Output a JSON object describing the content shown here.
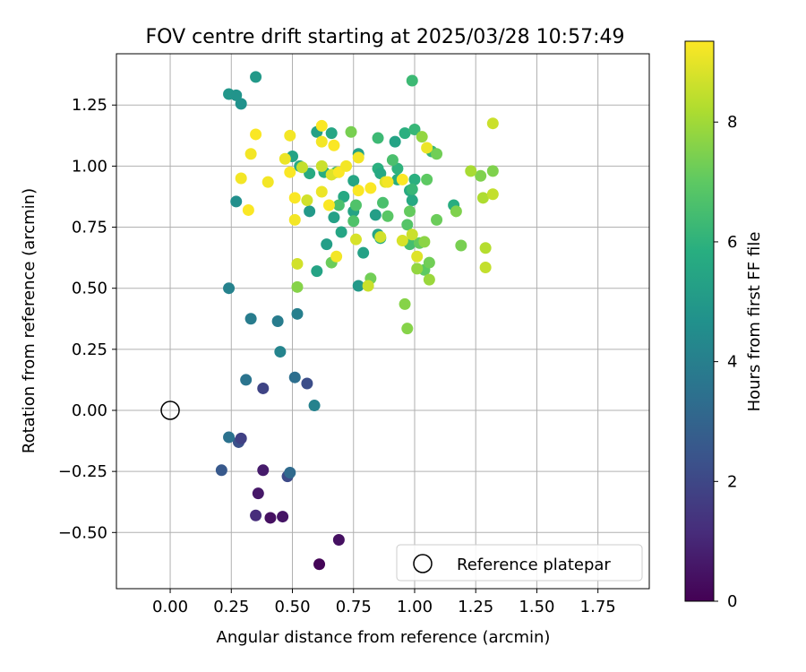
{
  "chart_data": {
    "type": "scatter",
    "title": "FOV centre drift starting at 2025/03/28 10:57:49",
    "xlabel": "Angular distance from reference (arcmin)",
    "ylabel": "Rotation from reference (arcmin)",
    "xlim": [
      -0.22,
      1.96
    ],
    "ylim": [
      -0.73,
      1.46
    ],
    "xticks": [
      "0.00",
      "0.25",
      "0.50",
      "0.75",
      "1.00",
      "1.25",
      "1.50",
      "1.75"
    ],
    "yticks": [
      "−0.50",
      "−0.25",
      "0.00",
      "0.25",
      "0.50",
      "0.75",
      "1.00",
      "1.25"
    ],
    "grid": true,
    "legend_position": "lower-right",
    "colormap": "viridis",
    "colorbar": {
      "label": "Hours from first FF file",
      "min": 0,
      "max": 9.35,
      "ticks": [
        "0",
        "2",
        "4",
        "6",
        "8"
      ]
    },
    "reference": {
      "label": "Reference platepar",
      "x": 0.0,
      "y": 0.0
    },
    "points": [
      {
        "x": 0.61,
        "y": -0.63,
        "t": 0.1
      },
      {
        "x": 0.69,
        "y": -0.53,
        "t": 0.4
      },
      {
        "x": 0.41,
        "y": -0.44,
        "t": 0.4
      },
      {
        "x": 0.46,
        "y": -0.435,
        "t": 0.5
      },
      {
        "x": 0.35,
        "y": -0.43,
        "t": 1.2
      },
      {
        "x": 0.36,
        "y": -0.34,
        "t": 0.6
      },
      {
        "x": 0.38,
        "y": -0.245,
        "t": 0.7
      },
      {
        "x": 0.21,
        "y": -0.245,
        "t": 2.6
      },
      {
        "x": 0.48,
        "y": -0.27,
        "t": 2.1
      },
      {
        "x": 0.49,
        "y": -0.255,
        "t": 3.2
      },
      {
        "x": 0.28,
        "y": -0.13,
        "t": 2.3
      },
      {
        "x": 0.29,
        "y": -0.115,
        "t": 1.8
      },
      {
        "x": 0.24,
        "y": -0.11,
        "t": 3.5
      },
      {
        "x": 0.59,
        "y": 0.02,
        "t": 4.1
      },
      {
        "x": 0.38,
        "y": 0.09,
        "t": 1.9
      },
      {
        "x": 0.56,
        "y": 0.11,
        "t": 2.2
      },
      {
        "x": 0.51,
        "y": 0.135,
        "t": 3.4
      },
      {
        "x": 0.31,
        "y": 0.125,
        "t": 3.6
      },
      {
        "x": 0.45,
        "y": 0.24,
        "t": 4.2
      },
      {
        "x": 0.33,
        "y": 0.375,
        "t": 3.9
      },
      {
        "x": 0.44,
        "y": 0.365,
        "t": 3.9
      },
      {
        "x": 0.52,
        "y": 0.395,
        "t": 4.0
      },
      {
        "x": 0.24,
        "y": 0.5,
        "t": 4.1
      },
      {
        "x": 0.27,
        "y": 0.855,
        "t": 4.6
      },
      {
        "x": 0.24,
        "y": 1.295,
        "t": 4.9
      },
      {
        "x": 0.29,
        "y": 1.255,
        "t": 4.7
      },
      {
        "x": 0.35,
        "y": 1.365,
        "t": 5.0
      },
      {
        "x": 0.6,
        "y": 0.57,
        "t": 5.4
      },
      {
        "x": 0.64,
        "y": 0.68,
        "t": 5.2
      },
      {
        "x": 0.57,
        "y": 0.815,
        "t": 5.0
      },
      {
        "x": 0.67,
        "y": 0.79,
        "t": 5.3
      },
      {
        "x": 0.7,
        "y": 0.73,
        "t": 5.5
      },
      {
        "x": 0.71,
        "y": 0.875,
        "t": 5.6
      },
      {
        "x": 0.75,
        "y": 0.815,
        "t": 5.4
      },
      {
        "x": 0.77,
        "y": 0.51,
        "t": 5.0
      },
      {
        "x": 0.79,
        "y": 0.645,
        "t": 5.3
      },
      {
        "x": 0.84,
        "y": 0.8,
        "t": 5.2
      },
      {
        "x": 0.85,
        "y": 0.72,
        "t": 5.5
      },
      {
        "x": 0.86,
        "y": 0.705,
        "t": 5.8
      },
      {
        "x": 0.5,
        "y": 1.04,
        "t": 5.4
      },
      {
        "x": 0.53,
        "y": 1.0,
        "t": 5.6
      },
      {
        "x": 0.57,
        "y": 0.97,
        "t": 5.7
      },
      {
        "x": 0.6,
        "y": 1.14,
        "t": 5.3
      },
      {
        "x": 0.63,
        "y": 0.975,
        "t": 5.8
      },
      {
        "x": 0.66,
        "y": 1.135,
        "t": 5.5
      },
      {
        "x": 0.75,
        "y": 0.94,
        "t": 5.5
      },
      {
        "x": 0.77,
        "y": 1.05,
        "t": 5.3
      },
      {
        "x": 0.85,
        "y": 0.99,
        "t": 5.9
      },
      {
        "x": 0.86,
        "y": 0.97,
        "t": 5.6
      },
      {
        "x": 0.92,
        "y": 1.1,
        "t": 5.4
      },
      {
        "x": 0.93,
        "y": 0.945,
        "t": 5.8
      },
      {
        "x": 0.93,
        "y": 0.99,
        "t": 6.0
      },
      {
        "x": 0.96,
        "y": 1.135,
        "t": 5.9
      },
      {
        "x": 0.98,
        "y": 0.9,
        "t": 5.7
      },
      {
        "x": 0.99,
        "y": 0.86,
        "t": 5.6
      },
      {
        "x": 1.0,
        "y": 0.945,
        "t": 5.9
      },
      {
        "x": 0.99,
        "y": 0.905,
        "t": 6.2
      },
      {
        "x": 1.0,
        "y": 1.15,
        "t": 6.2
      },
      {
        "x": 0.98,
        "y": 0.68,
        "t": 6.5
      },
      {
        "x": 0.99,
        "y": 1.35,
        "t": 6.3
      },
      {
        "x": 1.16,
        "y": 0.84,
        "t": 5.8
      },
      {
        "x": 1.07,
        "y": 1.06,
        "t": 6.2
      },
      {
        "x": 0.85,
        "y": 1.115,
        "t": 6.3
      },
      {
        "x": 0.68,
        "y": 0.975,
        "t": 6.6
      },
      {
        "x": 0.69,
        "y": 0.84,
        "t": 6.6
      },
      {
        "x": 0.75,
        "y": 0.775,
        "t": 6.7
      },
      {
        "x": 0.76,
        "y": 0.84,
        "t": 6.7
      },
      {
        "x": 0.87,
        "y": 0.85,
        "t": 6.6
      },
      {
        "x": 0.89,
        "y": 0.795,
        "t": 6.9
      },
      {
        "x": 0.91,
        "y": 1.025,
        "t": 6.6
      },
      {
        "x": 0.97,
        "y": 0.76,
        "t": 6.8
      },
      {
        "x": 0.98,
        "y": 0.815,
        "t": 7.1
      },
      {
        "x": 1.02,
        "y": 0.685,
        "t": 7.1
      },
      {
        "x": 1.04,
        "y": 0.575,
        "t": 7.0
      },
      {
        "x": 1.05,
        "y": 0.945,
        "t": 7.0
      },
      {
        "x": 1.06,
        "y": 0.605,
        "t": 7.3
      },
      {
        "x": 1.09,
        "y": 0.78,
        "t": 7.2
      },
      {
        "x": 1.09,
        "y": 1.05,
        "t": 7.3
      },
      {
        "x": 1.19,
        "y": 0.675,
        "t": 7.4
      },
      {
        "x": 1.17,
        "y": 0.815,
        "t": 7.5
      },
      {
        "x": 1.27,
        "y": 0.96,
        "t": 7.5
      },
      {
        "x": 1.32,
        "y": 0.98,
        "t": 7.5
      },
      {
        "x": 0.66,
        "y": 0.605,
        "t": 7.2
      },
      {
        "x": 0.74,
        "y": 1.14,
        "t": 7.4
      },
      {
        "x": 0.82,
        "y": 0.54,
        "t": 7.3
      },
      {
        "x": 0.96,
        "y": 0.435,
        "t": 7.6
      },
      {
        "x": 0.97,
        "y": 0.335,
        "t": 7.6
      },
      {
        "x": 0.52,
        "y": 0.505,
        "t": 7.6
      },
      {
        "x": 1.03,
        "y": 1.12,
        "t": 7.8
      },
      {
        "x": 1.01,
        "y": 0.58,
        "t": 7.8
      },
      {
        "x": 1.04,
        "y": 0.69,
        "t": 7.7
      },
      {
        "x": 1.06,
        "y": 0.535,
        "t": 7.9
      },
      {
        "x": 1.23,
        "y": 0.98,
        "t": 8.1
      },
      {
        "x": 1.28,
        "y": 0.87,
        "t": 8.2
      },
      {
        "x": 1.29,
        "y": 0.665,
        "t": 8.3
      },
      {
        "x": 1.29,
        "y": 0.585,
        "t": 8.5
      },
      {
        "x": 1.32,
        "y": 0.885,
        "t": 8.5
      },
      {
        "x": 1.32,
        "y": 1.175,
        "t": 8.6
      },
      {
        "x": 0.81,
        "y": 0.51,
        "t": 8.6
      },
      {
        "x": 0.52,
        "y": 0.6,
        "t": 8.7
      },
      {
        "x": 0.54,
        "y": 0.995,
        "t": 8.5
      },
      {
        "x": 0.56,
        "y": 0.86,
        "t": 8.7
      },
      {
        "x": 0.62,
        "y": 1.0,
        "t": 8.6
      },
      {
        "x": 0.76,
        "y": 0.7,
        "t": 8.8
      },
      {
        "x": 0.86,
        "y": 0.71,
        "t": 8.7
      },
      {
        "x": 0.95,
        "y": 0.695,
        "t": 8.8
      },
      {
        "x": 0.99,
        "y": 0.72,
        "t": 8.6
      },
      {
        "x": 1.01,
        "y": 0.63,
        "t": 8.9
      },
      {
        "x": 0.88,
        "y": 0.935,
        "t": 8.9
      },
      {
        "x": 0.66,
        "y": 0.965,
        "t": 8.9
      },
      {
        "x": 0.27,
        "y": 1.29,
        "t": 4.8
      },
      {
        "x": 0.29,
        "y": 0.95,
        "t": 9.2
      },
      {
        "x": 0.32,
        "y": 0.82,
        "t": 9.3
      },
      {
        "x": 0.33,
        "y": 1.05,
        "t": 9.2
      },
      {
        "x": 0.35,
        "y": 1.13,
        "t": 9.3
      },
      {
        "x": 0.4,
        "y": 0.935,
        "t": 9.2
      },
      {
        "x": 0.47,
        "y": 1.03,
        "t": 9.1
      },
      {
        "x": 0.49,
        "y": 1.125,
        "t": 9.2
      },
      {
        "x": 0.49,
        "y": 0.975,
        "t": 9.3
      },
      {
        "x": 0.51,
        "y": 0.87,
        "t": 9.3
      },
      {
        "x": 0.51,
        "y": 0.78,
        "t": 9.2
      },
      {
        "x": 0.62,
        "y": 1.165,
        "t": 9.3
      },
      {
        "x": 0.62,
        "y": 1.1,
        "t": 9.2
      },
      {
        "x": 0.62,
        "y": 0.895,
        "t": 9.1
      },
      {
        "x": 0.65,
        "y": 0.84,
        "t": 9.3
      },
      {
        "x": 0.67,
        "y": 1.085,
        "t": 9.3
      },
      {
        "x": 0.68,
        "y": 0.63,
        "t": 9.2
      },
      {
        "x": 0.69,
        "y": 0.975,
        "t": 9.3
      },
      {
        "x": 0.72,
        "y": 1.0,
        "t": 9.2
      },
      {
        "x": 0.77,
        "y": 0.9,
        "t": 9.3
      },
      {
        "x": 0.77,
        "y": 1.035,
        "t": 9.2
      },
      {
        "x": 0.82,
        "y": 0.91,
        "t": 9.3
      },
      {
        "x": 0.89,
        "y": 0.935,
        "t": 9.2
      },
      {
        "x": 0.95,
        "y": 0.945,
        "t": 9.3
      },
      {
        "x": 1.05,
        "y": 1.075,
        "t": 9.1
      }
    ]
  }
}
